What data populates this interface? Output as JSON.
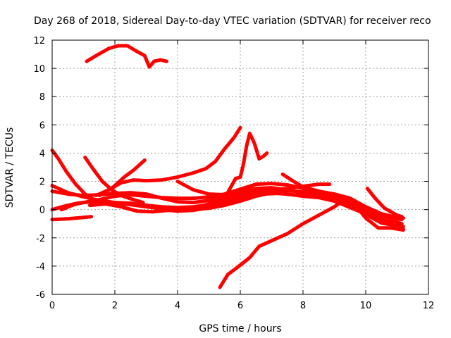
{
  "chart_data": {
    "type": "line",
    "title": "Day 268 of 2018, Sidereal Day-to-day VTEC variation (SDTVAR) for receiver reco",
    "xlabel": "GPS time / hours",
    "ylabel": "SDTVAR / TECUs",
    "xlim": [
      0,
      12
    ],
    "ylim": [
      -6,
      12
    ],
    "xticks": [
      0,
      2,
      4,
      6,
      8,
      10,
      12
    ],
    "yticks": [
      -6,
      -4,
      -2,
      0,
      2,
      4,
      6,
      8,
      10,
      12
    ],
    "grid": true,
    "legend": "none",
    "series_color": "#ff0000",
    "series": [
      {
        "name": "s1",
        "points": [
          [
            1.1,
            10.5
          ],
          [
            1.4,
            10.9
          ],
          [
            1.8,
            11.4
          ],
          [
            2.1,
            11.6
          ],
          [
            2.4,
            11.6
          ],
          [
            2.7,
            11.2
          ],
          [
            2.95,
            10.9
          ],
          [
            3.1,
            10.1
          ],
          [
            3.25,
            10.5
          ],
          [
            3.45,
            10.6
          ],
          [
            3.65,
            10.5
          ]
        ]
      },
      {
        "name": "s2",
        "points": [
          [
            5.35,
            -5.5
          ],
          [
            5.6,
            -4.6
          ],
          [
            5.9,
            -4.1
          ],
          [
            6.3,
            -3.4
          ],
          [
            6.6,
            -2.6
          ],
          [
            7.0,
            -2.2
          ],
          [
            7.5,
            -1.7
          ],
          [
            8.0,
            -1.0
          ],
          [
            8.5,
            -0.4
          ],
          [
            9.0,
            0.2
          ],
          [
            9.3,
            0.7
          ]
        ]
      },
      {
        "name": "s3",
        "points": [
          [
            0.0,
            -0.7
          ],
          [
            0.5,
            -0.65
          ],
          [
            1.0,
            -0.55
          ],
          [
            1.25,
            -0.5
          ]
        ]
      },
      {
        "name": "s4",
        "points": [
          [
            0.0,
            4.2
          ],
          [
            0.2,
            3.6
          ],
          [
            0.45,
            2.7
          ],
          [
            0.75,
            1.8
          ],
          [
            1.05,
            1.1
          ],
          [
            1.3,
            0.7
          ],
          [
            1.5,
            0.6
          ]
        ]
      },
      {
        "name": "s5",
        "points": [
          [
            1.05,
            3.7
          ],
          [
            1.3,
            2.9
          ],
          [
            1.6,
            2.0
          ],
          [
            1.9,
            1.4
          ],
          [
            2.2,
            1.0
          ],
          [
            2.6,
            0.7
          ],
          [
            2.9,
            0.5
          ]
        ]
      },
      {
        "name": "s6",
        "points": [
          [
            0.0,
            1.7
          ],
          [
            0.5,
            1.2
          ],
          [
            1.0,
            0.9
          ],
          [
            1.5,
            0.65
          ],
          [
            2.0,
            0.5
          ],
          [
            2.5,
            0.45
          ],
          [
            3.0,
            0.3
          ],
          [
            3.5,
            0.2
          ],
          [
            4.0,
            0.15
          ],
          [
            4.5,
            0.2
          ],
          [
            5.0,
            0.35
          ],
          [
            5.5,
            0.5
          ],
          [
            6.0,
            0.8
          ]
        ]
      },
      {
        "name": "s7",
        "points": [
          [
            0.0,
            0.0
          ],
          [
            0.4,
            0.25
          ],
          [
            0.8,
            0.45
          ],
          [
            1.2,
            0.55
          ],
          [
            1.6,
            0.55
          ],
          [
            2.0,
            0.45
          ],
          [
            2.5,
            0.35
          ],
          [
            3.0,
            0.2
          ],
          [
            3.5,
            0.05
          ],
          [
            4.0,
            0.0
          ],
          [
            4.5,
            0.0
          ],
          [
            5.0,
            0.1
          ],
          [
            5.5,
            0.3
          ],
          [
            6.0,
            0.6
          ],
          [
            6.5,
            0.95
          ],
          [
            7.0,
            1.2
          ],
          [
            7.5,
            1.35
          ],
          [
            8.0,
            1.25
          ],
          [
            8.5,
            1.0
          ],
          [
            9.0,
            0.6
          ],
          [
            9.5,
            0.15
          ],
          [
            10.0,
            -0.3
          ],
          [
            10.5,
            -0.7
          ],
          [
            11.0,
            -0.9
          ],
          [
            11.15,
            -1.0
          ]
        ]
      },
      {
        "name": "s8",
        "points": [
          [
            0.0,
            1.3
          ],
          [
            0.5,
            1.1
          ],
          [
            1.0,
            1.0
          ],
          [
            1.5,
            1.05
          ],
          [
            2.0,
            1.15
          ],
          [
            2.5,
            1.2
          ],
          [
            3.0,
            1.1
          ],
          [
            3.5,
            0.8
          ],
          [
            4.0,
            0.55
          ],
          [
            4.5,
            0.5
          ],
          [
            5.0,
            0.65
          ],
          [
            5.5,
            0.95
          ],
          [
            6.0,
            1.3
          ],
          [
            6.5,
            1.5
          ],
          [
            7.0,
            1.55
          ],
          [
            7.5,
            1.4
          ],
          [
            8.0,
            1.2
          ],
          [
            8.5,
            1.0
          ],
          [
            9.0,
            0.75
          ],
          [
            9.5,
            0.45
          ],
          [
            10.0,
            -0.05
          ],
          [
            10.5,
            -0.45
          ],
          [
            11.0,
            -0.65
          ],
          [
            11.15,
            -0.7
          ]
        ]
      },
      {
        "name": "s9",
        "points": [
          [
            1.4,
            1.0
          ],
          [
            1.8,
            1.4
          ],
          [
            2.2,
            1.9
          ],
          [
            2.6,
            2.1
          ],
          [
            3.0,
            2.05
          ],
          [
            3.5,
            2.1
          ],
          [
            4.0,
            2.3
          ],
          [
            4.5,
            2.6
          ],
          [
            4.9,
            2.9
          ],
          [
            5.2,
            3.4
          ],
          [
            5.5,
            4.3
          ],
          [
            5.8,
            5.1
          ],
          [
            6.0,
            5.8
          ]
        ]
      },
      {
        "name": "s10",
        "points": [
          [
            1.5,
            1.0
          ],
          [
            1.9,
            1.5
          ],
          [
            2.3,
            2.3
          ],
          [
            2.6,
            2.8
          ],
          [
            2.95,
            3.5
          ]
        ]
      },
      {
        "name": "s11",
        "points": [
          [
            3.5,
            0.0
          ],
          [
            4.0,
            -0.1
          ],
          [
            4.5,
            -0.05
          ],
          [
            5.0,
            0.15
          ],
          [
            5.4,
            0.4
          ],
          [
            5.7,
            1.6
          ],
          [
            5.85,
            2.2
          ],
          [
            6.0,
            2.3
          ],
          [
            6.1,
            3.2
          ],
          [
            6.2,
            4.5
          ],
          [
            6.3,
            5.4
          ],
          [
            6.45,
            4.7
          ],
          [
            6.6,
            3.6
          ],
          [
            6.75,
            3.8
          ],
          [
            6.85,
            4.0
          ]
        ]
      },
      {
        "name": "s12",
        "points": [
          [
            4.0,
            2.0
          ],
          [
            4.5,
            1.4
          ],
          [
            5.0,
            1.1
          ],
          [
            5.5,
            1.05
          ],
          [
            6.0,
            1.2
          ],
          [
            6.5,
            1.3
          ],
          [
            7.0,
            1.4
          ],
          [
            7.5,
            1.5
          ],
          [
            8.0,
            1.65
          ],
          [
            8.5,
            1.8
          ],
          [
            8.85,
            1.8
          ]
        ]
      },
      {
        "name": "s13",
        "points": [
          [
            0.3,
            0.0
          ],
          [
            0.7,
            0.35
          ],
          [
            1.0,
            0.5
          ],
          [
            1.5,
            0.7
          ],
          [
            2.0,
            0.95
          ],
          [
            2.5,
            1.05
          ],
          [
            3.0,
            0.95
          ],
          [
            3.5,
            0.85
          ],
          [
            4.0,
            0.8
          ],
          [
            4.5,
            0.8
          ],
          [
            5.0,
            0.9
          ],
          [
            5.5,
            1.1
          ],
          [
            6.0,
            1.45
          ],
          [
            6.5,
            1.8
          ],
          [
            7.0,
            1.85
          ],
          [
            7.5,
            1.75
          ],
          [
            8.0,
            1.5
          ],
          [
            8.5,
            1.2
          ],
          [
            9.0,
            0.9
          ],
          [
            9.5,
            0.6
          ],
          [
            10.0,
            -0.1
          ],
          [
            10.5,
            -0.8
          ],
          [
            11.0,
            -1.2
          ],
          [
            11.2,
            -1.4
          ]
        ]
      },
      {
        "name": "s14",
        "points": [
          [
            1.2,
            0.3
          ],
          [
            1.7,
            0.4
          ],
          [
            2.2,
            0.2
          ],
          [
            2.7,
            -0.1
          ],
          [
            3.2,
            -0.15
          ],
          [
            3.7,
            -0.05
          ],
          [
            4.2,
            0.0
          ],
          [
            4.7,
            0.1
          ],
          [
            5.2,
            0.35
          ],
          [
            5.7,
            0.65
          ],
          [
            6.2,
            0.95
          ],
          [
            6.7,
            1.1
          ],
          [
            7.2,
            1.15
          ],
          [
            7.7,
            1.05
          ],
          [
            8.2,
            1.0
          ],
          [
            8.7,
            1.05
          ],
          [
            9.2,
            0.95
          ],
          [
            9.6,
            0.5
          ],
          [
            10.0,
            -0.6
          ],
          [
            10.4,
            -1.3
          ],
          [
            10.8,
            -1.3
          ],
          [
            11.2,
            -1.45
          ]
        ]
      },
      {
        "name": "s15",
        "points": [
          [
            7.35,
            2.5
          ],
          [
            7.7,
            2.0
          ],
          [
            8.0,
            1.6
          ],
          [
            8.5,
            1.3
          ],
          [
            9.0,
            1.1
          ],
          [
            9.5,
            0.8
          ],
          [
            10.0,
            0.2
          ],
          [
            10.5,
            -0.3
          ],
          [
            11.0,
            -0.55
          ],
          [
            11.2,
            -0.6
          ]
        ]
      },
      {
        "name": "s16",
        "points": [
          [
            10.05,
            1.5
          ],
          [
            10.3,
            0.8
          ],
          [
            10.6,
            0.1
          ],
          [
            11.0,
            -0.4
          ],
          [
            11.15,
            -0.5
          ]
        ]
      },
      {
        "name": "s17",
        "points": [
          [
            4.0,
            -0.1
          ],
          [
            4.5,
            0.1
          ],
          [
            5.0,
            0.4
          ],
          [
            5.5,
            0.75
          ],
          [
            6.0,
            1.05
          ],
          [
            6.5,
            1.3
          ],
          [
            7.0,
            1.25
          ],
          [
            7.5,
            1.1
          ],
          [
            8.0,
            0.95
          ],
          [
            8.5,
            0.85
          ],
          [
            9.0,
            0.6
          ],
          [
            9.5,
            0.25
          ],
          [
            10.0,
            -0.35
          ],
          [
            10.5,
            -0.95
          ],
          [
            11.0,
            -1.15
          ],
          [
            11.2,
            -1.2
          ]
        ]
      }
    ]
  }
}
